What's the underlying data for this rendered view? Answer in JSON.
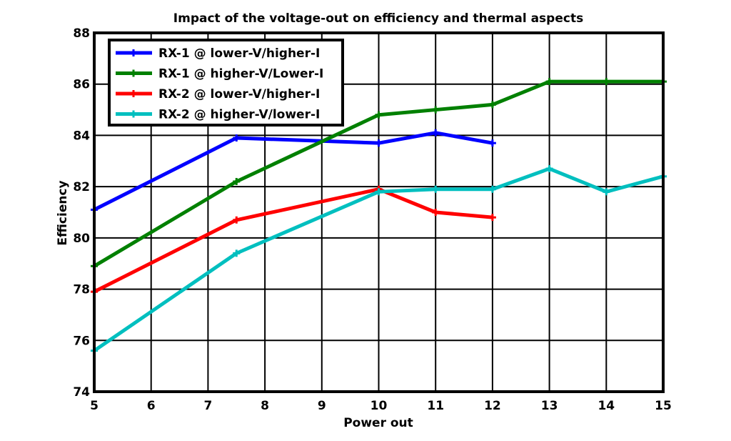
{
  "chart_data": {
    "type": "line",
    "title": "Impact of the voltage-out on efficiency and thermal aspects",
    "xlabel": "Power out",
    "ylabel": "Efficiency",
    "xlim": [
      5,
      15
    ],
    "ylim": [
      74,
      88
    ],
    "xticks": [
      "5",
      "6",
      "7",
      "8",
      "9",
      "10",
      "11",
      "12",
      "13",
      "14",
      "15"
    ],
    "yticks": [
      "74",
      "76",
      "78",
      "80",
      "82",
      "84",
      "86",
      "88"
    ],
    "grid": true,
    "legend_position": "top-left",
    "series": [
      {
        "name": "RX-1 @ lower-V/higher-I",
        "color": "#0000ff",
        "x": [
          5,
          7.5,
          10,
          11,
          12
        ],
        "y": [
          81.1,
          83.9,
          83.7,
          84.1,
          83.7
        ]
      },
      {
        "name": "RX-1 @ higher-V/Lower-I",
        "color": "#008000",
        "x": [
          5,
          7.5,
          10,
          11,
          12,
          13,
          14,
          15
        ],
        "y": [
          78.9,
          82.2,
          84.8,
          85.0,
          85.2,
          86.1,
          86.1,
          86.1
        ]
      },
      {
        "name": "RX-2 @ lower-V/higher-I",
        "color": "#ff0000",
        "x": [
          5,
          7.5,
          10,
          11,
          12
        ],
        "y": [
          77.9,
          80.7,
          81.9,
          81.0,
          80.8
        ]
      },
      {
        "name": "RX-2 @ higher-V/lower-I",
        "color": "#00bfbf",
        "x": [
          5,
          7.5,
          10,
          11,
          12,
          13,
          14,
          15
        ],
        "y": [
          75.6,
          79.4,
          81.8,
          81.9,
          81.9,
          82.7,
          81.8,
          82.4
        ]
      }
    ]
  }
}
